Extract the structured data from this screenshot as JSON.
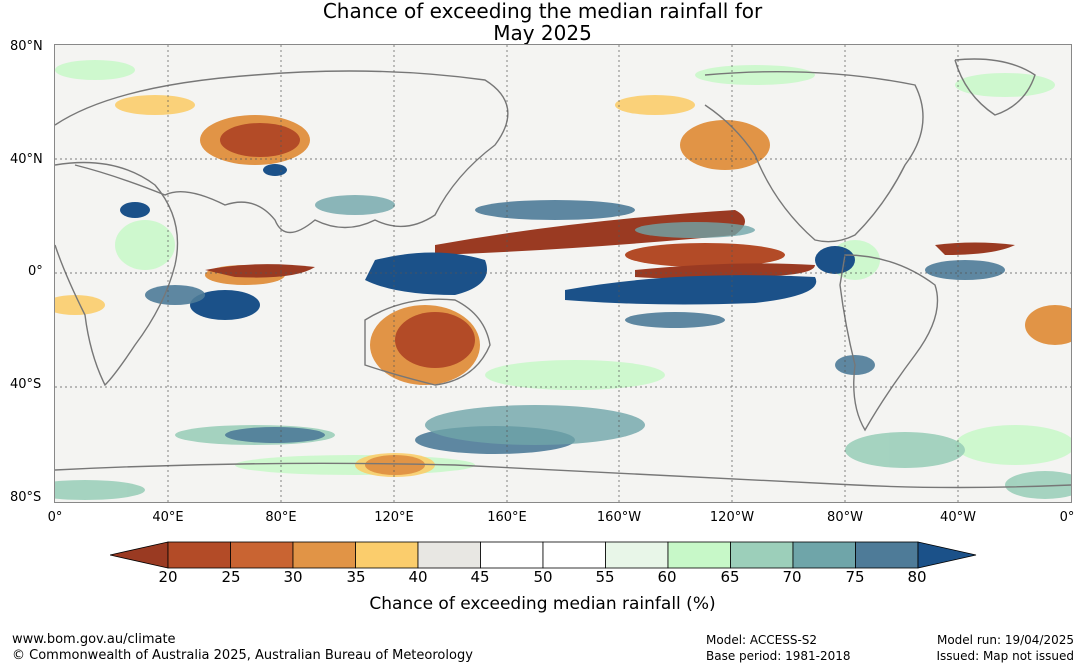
{
  "title": {
    "line1": "Chance of exceeding the median rainfall for",
    "line2": "May 2025"
  },
  "lat_labels": [
    "80°N",
    "40°N",
    "0°",
    "40°S",
    "80°S"
  ],
  "lon_labels": [
    "0°",
    "40°E",
    "80°E",
    "120°E",
    "160°E",
    "160°W",
    "120°W",
    "80°W",
    "40°W",
    "0°"
  ],
  "colorbar": {
    "ticks": [
      "20",
      "25",
      "30",
      "35",
      "40",
      "45",
      "50",
      "55",
      "60",
      "65",
      "70",
      "75",
      "80"
    ],
    "colors": [
      "#9a3a22",
      "#b34b27",
      "#c96432",
      "#e19446",
      "#fbcd6c",
      "#e8e7e3",
      "#ffffff",
      "#ffffff",
      "#e8f6e8",
      "#c7f8c8",
      "#9ccfba",
      "#6fa5a9",
      "#4e7b98",
      "#1b5189"
    ],
    "label": "Chance of exceeding median rainfall (%)"
  },
  "footer": {
    "site": "www.bom.gov.au/climate",
    "copyright": "© Commonwealth of Australia 2025, Australian Bureau of Meteorology",
    "model": "Model: ACCESS-S2",
    "base_period": "Base period: 1981-2018",
    "model_run": "Model run: 19/04/2025",
    "issued": "Issued: Map not issued"
  }
}
